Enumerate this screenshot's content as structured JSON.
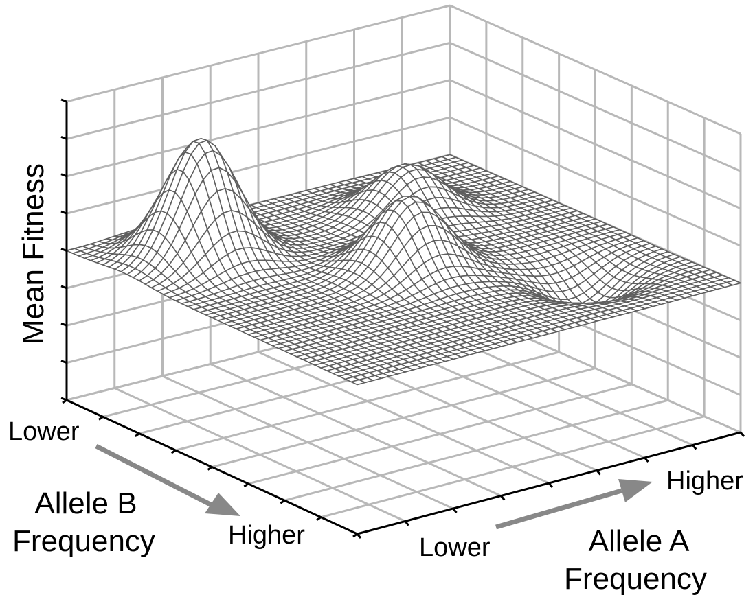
{
  "chart_data": {
    "type": "surface",
    "zlabel": "Mean Fitness",
    "xlabel": [
      "Allele A",
      "Frequency"
    ],
    "ylabel": [
      "Allele B",
      "Frequency"
    ],
    "x_ticklabels": [
      "Lower",
      "Higher"
    ],
    "y_ticklabels": [
      "Lower",
      "Higher"
    ],
    "title": "",
    "grid": true,
    "baseline": 0.5,
    "peaks": [
      {
        "label": "",
        "a": 0.2,
        "b": 0.2,
        "height": 0.4
      },
      {
        "label": "",
        "a": 0.5,
        "b": 0.52,
        "height": 0.25
      },
      {
        "label": "",
        "a": 0.7,
        "b": 0.25,
        "height": 0.17
      },
      {
        "label": "",
        "a": 0.78,
        "b": 0.75,
        "height": -0.12
      }
    ],
    "colors": {
      "surface": "#5f5f5f",
      "grid": "#b8b8b8",
      "axis": "#000000",
      "arrow": "#888888"
    }
  }
}
